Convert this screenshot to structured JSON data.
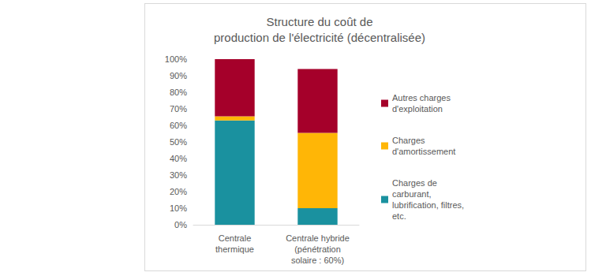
{
  "chart_data": {
    "type": "bar",
    "stacked": true,
    "title": "Structure du coût de\nproduction de l'électricité (décentralisée)",
    "categories": [
      "Centrale\nthermique",
      "Centrale hybride\n(pénétration\nsolaire : 60%)"
    ],
    "series": [
      {
        "name": "Charges de\ncarburant,\nlubrification, filtres,\netc.",
        "color": "#1a919f",
        "values": [
          63,
          10
        ]
      },
      {
        "name": "Charges\nd'amortissement",
        "color": "#ffb606",
        "values": [
          2.5,
          45.5
        ]
      },
      {
        "name": "Autres charges\nd'exploitation",
        "color": "#a5002a",
        "values": [
          34.5,
          38.5
        ]
      }
    ],
    "ylim": [
      0,
      100
    ],
    "yticks": [
      {
        "value": 0,
        "label": "0%"
      },
      {
        "value": 10,
        "label": "10%"
      },
      {
        "value": 20,
        "label": "20%"
      },
      {
        "value": 30,
        "label": "30%"
      },
      {
        "value": 40,
        "label": "40%"
      },
      {
        "value": 50,
        "label": "50%"
      },
      {
        "value": 60,
        "label": "60%"
      },
      {
        "value": 70,
        "label": "70%"
      },
      {
        "value": 80,
        "label": "80%"
      },
      {
        "value": 90,
        "label": "90%"
      },
      {
        "value": 100,
        "label": "100%"
      }
    ],
    "grid": false,
    "legend": "right",
    "data_labels": false
  }
}
